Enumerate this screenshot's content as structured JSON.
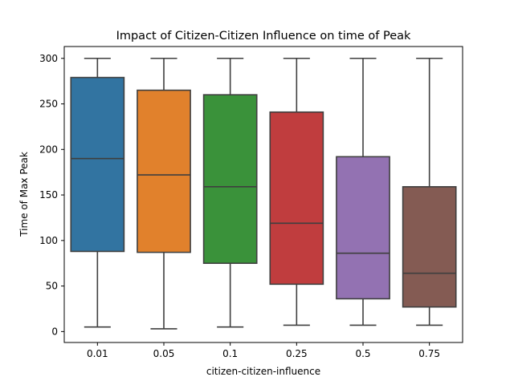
{
  "chart_data": {
    "type": "box",
    "title": "Impact of Citizen-Citizen Influence on time of Peak",
    "xlabel": "citizen-citizen-influence",
    "ylabel": "Time of Max Peak",
    "ylim": [
      -12,
      313
    ],
    "yticks": [
      0,
      50,
      100,
      150,
      200,
      250,
      300
    ],
    "grid": false,
    "categories": [
      "0.01",
      "0.05",
      "0.1",
      "0.25",
      "0.5",
      "0.75"
    ],
    "boxes": [
      {
        "category": "0.01",
        "whisker_low": 5,
        "q1": 88,
        "median": 190,
        "q3": 279,
        "whisker_high": 300,
        "color": "#3274a1"
      },
      {
        "category": "0.05",
        "whisker_low": 3,
        "q1": 87,
        "median": 172,
        "q3": 265,
        "whisker_high": 300,
        "color": "#e1812c"
      },
      {
        "category": "0.1",
        "whisker_low": 5,
        "q1": 75,
        "median": 159,
        "q3": 260,
        "whisker_high": 300,
        "color": "#3a923a"
      },
      {
        "category": "0.25",
        "whisker_low": 7,
        "q1": 52,
        "median": 119,
        "q3": 241,
        "whisker_high": 300,
        "color": "#c03d3e"
      },
      {
        "category": "0.5",
        "whisker_low": 7,
        "q1": 36,
        "median": 86,
        "q3": 192,
        "whisker_high": 300,
        "color": "#9372b2"
      },
      {
        "category": "0.75",
        "whisker_low": 7,
        "q1": 27,
        "median": 64,
        "q3": 159,
        "whisker_high": 300,
        "color": "#845b53"
      }
    ]
  }
}
